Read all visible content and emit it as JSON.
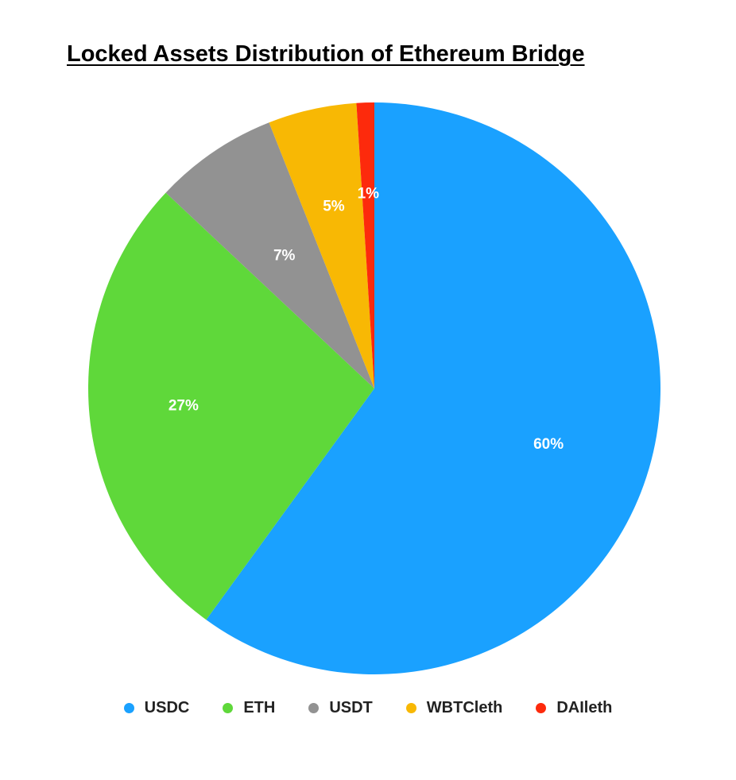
{
  "chart_data": {
    "type": "pie",
    "title": "Locked Assets Distribution of Ethereum Bridge",
    "categories": [
      "USDC",
      "ETH",
      "USDT",
      "WBTCleth",
      "DAIleth"
    ],
    "values": [
      60,
      27,
      7,
      5,
      1
    ],
    "labels": [
      "60%",
      "27%",
      "7%",
      "5%",
      "1%"
    ],
    "colors": [
      "#1aa1ff",
      "#5fd83a",
      "#929292",
      "#f8b804",
      "#fd2a0c"
    ],
    "legend_position": "bottom"
  }
}
